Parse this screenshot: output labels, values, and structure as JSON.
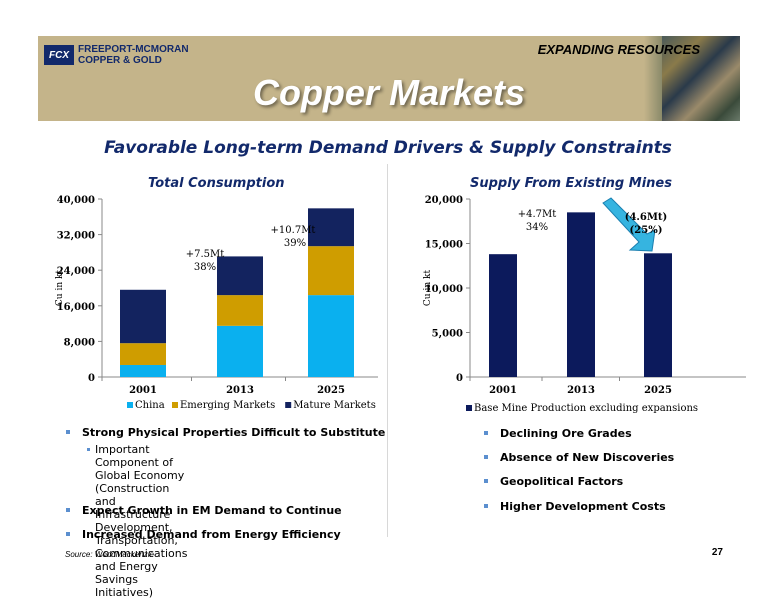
{
  "header": {
    "logo_mark": "FCX",
    "logo_line1": "FREEPORT-MCMORAN",
    "logo_line2": "COPPER & GOLD",
    "tagline": "EXPANDING RESOURCES",
    "title": "Copper Markets"
  },
  "subtitle": "Favorable Long-term Demand Drivers & Supply Constraints",
  "chart_data": [
    {
      "type": "bar",
      "stacked": true,
      "title": "Total Consumption",
      "ylabel": "Cu in kt",
      "xlabel": "",
      "categories": [
        "2001",
        "2013",
        "2025"
      ],
      "series": [
        {
          "name": "China",
          "values": [
            2700,
            11500,
            18400
          ],
          "color": "#0ab0ef"
        },
        {
          "name": "Emerging Markets",
          "values": [
            4900,
            6900,
            11000
          ],
          "color": "#cf9d00"
        },
        {
          "name": "Mature Markets",
          "values": [
            12000,
            8700,
            8500
          ],
          "color": "#13235f"
        }
      ],
      "ylim": [
        0,
        40000
      ],
      "yticks": [
        "0",
        "8,000",
        "16,000",
        "24,000",
        "32,000",
        "40,000"
      ],
      "annotations": [
        {
          "line1": "+7.5Mt",
          "line2": "38%"
        },
        {
          "line1": "+10.7Mt",
          "line2": "39%"
        }
      ],
      "legend_position": "bottom"
    },
    {
      "type": "bar",
      "title": "Supply From Existing Mines",
      "ylabel": "Cu in kt",
      "xlabel": "",
      "categories": [
        "2001",
        "2013",
        "2025"
      ],
      "series": [
        {
          "name": "Base Mine Production excluding expansions",
          "values": [
            13800,
            18500,
            13900
          ],
          "color": "#0c1a5c"
        }
      ],
      "ylim": [
        0,
        20000
      ],
      "yticks": [
        "0",
        "5,000",
        "10,000",
        "15,000",
        "20,000"
      ],
      "annotations": [
        {
          "line1": "+4.7Mt",
          "line2": "34%"
        },
        {
          "line1": "(4.6Mt)",
          "line2": "(25%)"
        }
      ],
      "arrow_color": "#36b4e0",
      "legend_position": "bottom"
    }
  ],
  "left_bullets": {
    "b1": "Strong Physical Properties Difficult to Substitute",
    "sub1": "Important Component of Global Economy\n(Construction and Infrastructure Development,\nTransportation, Communications and Energy\nSavings Initiatives)",
    "b2": "Expect Growth in EM Demand to Continue",
    "b3": "Increased Demand from Energy Efficiency"
  },
  "right_bullets": {
    "b1": "Declining Ore Grades",
    "b2": "Absence of New Discoveries",
    "b3": "Geopolitical Factors",
    "b4": "Higher Development Costs"
  },
  "footer": {
    "source": "Source:  WoodMackenzie",
    "page": "27"
  }
}
